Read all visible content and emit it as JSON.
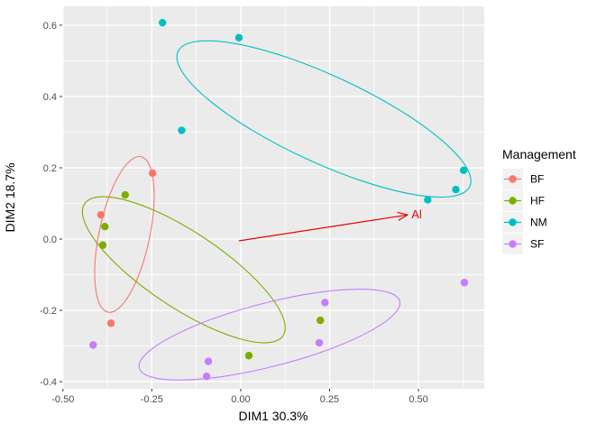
{
  "chart_data": {
    "type": "scatter",
    "title": "",
    "xlabel": "DIM1 30.3%",
    "ylabel": "DIM2 18.7%",
    "xlim": [
      -0.502,
      0.685
    ],
    "ylim": [
      -0.42,
      0.653
    ],
    "x_major_ticks": [
      -0.5,
      -0.25,
      0,
      0.25,
      0.5
    ],
    "x_tick_labels": [
      "-0.50",
      "-0.25",
      "0.00",
      "0.25",
      "0.50"
    ],
    "x_minor_ticks": [
      -0.375,
      -0.125,
      0.125,
      0.375,
      0.625
    ],
    "y_major_ticks": [
      -0.4,
      -0.2,
      0,
      0.2,
      0.4,
      0.6
    ],
    "y_tick_labels": [
      "-0.4",
      "-0.2",
      "0.0",
      "0.2",
      "0.4",
      "0.6"
    ],
    "y_minor_ticks": [
      -0.3,
      -0.1,
      0.1,
      0.3,
      0.5
    ],
    "grid": true,
    "legend_position": "right",
    "legend_title": "Management",
    "panel_bg": "#EBEBEB",
    "grid_color": "#FFFFFF",
    "tick_mark_color": "#333333",
    "legend_key_bg": "#F2F2F2",
    "series": [
      {
        "name": "BF",
        "color": "#F8766D",
        "points": [
          [
            -0.248,
            0.185
          ],
          [
            -0.393,
            0.068
          ],
          [
            -0.365,
            -0.236
          ]
        ],
        "ellipse": {
          "cx": -0.327,
          "cy": 0.013,
          "rx": 0.071,
          "ry": 0.223,
          "angle_deg": 12
        }
      },
      {
        "name": "HF",
        "color": "#7CAE00",
        "points": [
          [
            -0.325,
            0.124
          ],
          [
            -0.382,
            0.035
          ],
          [
            -0.388,
            -0.017
          ],
          [
            0.224,
            -0.228
          ],
          [
            0.023,
            -0.327
          ]
        ],
        "ellipse": {
          "cx": -0.16,
          "cy": -0.086,
          "rx": 0.335,
          "ry": 0.106,
          "angle_deg": 33.6
        }
      },
      {
        "name": "NM",
        "color": "#00BFC4",
        "points": [
          [
            -0.22,
            0.607
          ],
          [
            -0.005,
            0.565
          ],
          [
            -0.166,
            0.305
          ],
          [
            0.526,
            0.11
          ],
          [
            0.605,
            0.139
          ],
          [
            0.627,
            0.193
          ]
        ],
        "ellipse": {
          "cx": 0.234,
          "cy": 0.337,
          "rx": 0.452,
          "ry": 0.122,
          "angle_deg": 24.8
        }
      },
      {
        "name": "SF",
        "color": "#C77CFF",
        "points": [
          [
            -0.415,
            -0.297
          ],
          [
            -0.091,
            -0.343
          ],
          [
            -0.096,
            -0.385
          ],
          [
            0.629,
            -0.122
          ],
          [
            0.237,
            -0.178
          ],
          [
            0.221,
            -0.291
          ]
        ],
        "ellipse": {
          "cx": 0.081,
          "cy": -0.268,
          "rx": 0.378,
          "ry": 0.089,
          "angle_deg": -14.4
        }
      }
    ],
    "annotations": [
      {
        "type": "arrow",
        "from": [
          -0.005,
          -0.005
        ],
        "to": [
          0.47,
          0.068
        ],
        "label": "Al",
        "color": "#E60000"
      }
    ]
  }
}
